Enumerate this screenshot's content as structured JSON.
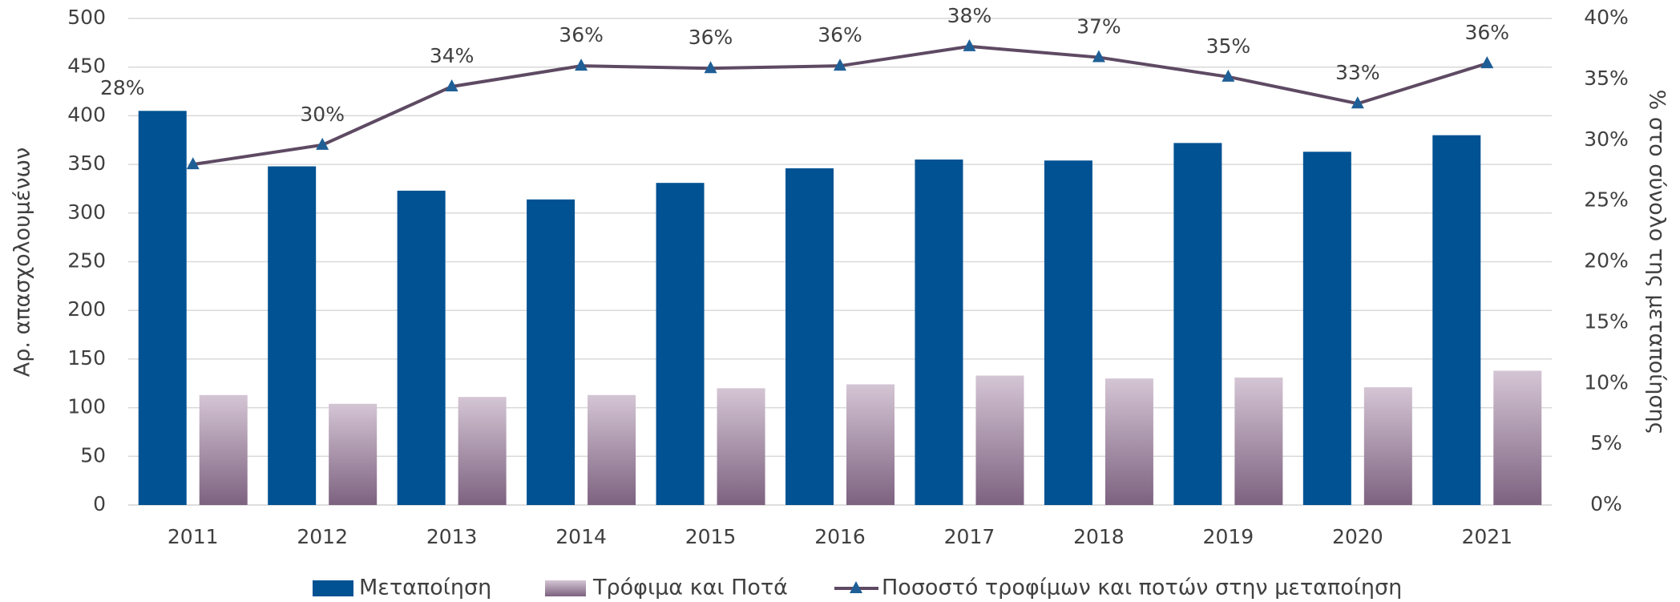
{
  "chart_data": {
    "type": "bar",
    "y_label": "Αρ. απασχολουμένων",
    "y2_label": "% στο σύνολο της μεταποίησης",
    "categories": [
      "2011",
      "2012",
      "2013",
      "2014",
      "2015",
      "2016",
      "2017",
      "2018",
      "2019",
      "2020",
      "2021"
    ],
    "series": [
      {
        "name": "Μεταποίηση",
        "type": "bar",
        "color": "#005293",
        "values": [
          405,
          348,
          323,
          314,
          331,
          346,
          355,
          354,
          372,
          363,
          380
        ]
      },
      {
        "name": "Τρόφιμα και Ποτά",
        "type": "bar",
        "color": "#a58ca6",
        "values": [
          113,
          104,
          111,
          113,
          120,
          124,
          133,
          130,
          131,
          121,
          138
        ]
      },
      {
        "name": "Ποσοστό τροφίμων και ποτών στην μεταποίηση",
        "type": "line",
        "axis": "y2",
        "color": "#5e4a63",
        "marker_color": "#1f5f96",
        "values": [
          28.0,
          29.6,
          34.4,
          36.1,
          35.9,
          36.1,
          37.7,
          36.8,
          35.2,
          33.0,
          36.3
        ],
        "value_labels": [
          "28%",
          "30%",
          "34%",
          "36%",
          "36%",
          "36%",
          "38%",
          "37%",
          "35%",
          "33%",
          "36%"
        ]
      }
    ],
    "ylim": [
      0,
      500
    ],
    "yticks": [
      0,
      50,
      100,
      150,
      200,
      250,
      300,
      350,
      400,
      450,
      500
    ],
    "y2lim": [
      0,
      40
    ],
    "y2ticks": [
      {
        "value": 0,
        "label": "0%"
      },
      {
        "value": 5,
        "label": "5%"
      },
      {
        "value": 10,
        "label": "10%"
      },
      {
        "value": 15,
        "label": "15%"
      },
      {
        "value": 20,
        "label": "20%"
      },
      {
        "value": 25,
        "label": "25%"
      },
      {
        "value": 30,
        "label": "30%"
      },
      {
        "value": 35,
        "label": "35%"
      },
      {
        "value": 40,
        "label": "40%"
      }
    ],
    "grid": true,
    "legend": "bottom"
  }
}
